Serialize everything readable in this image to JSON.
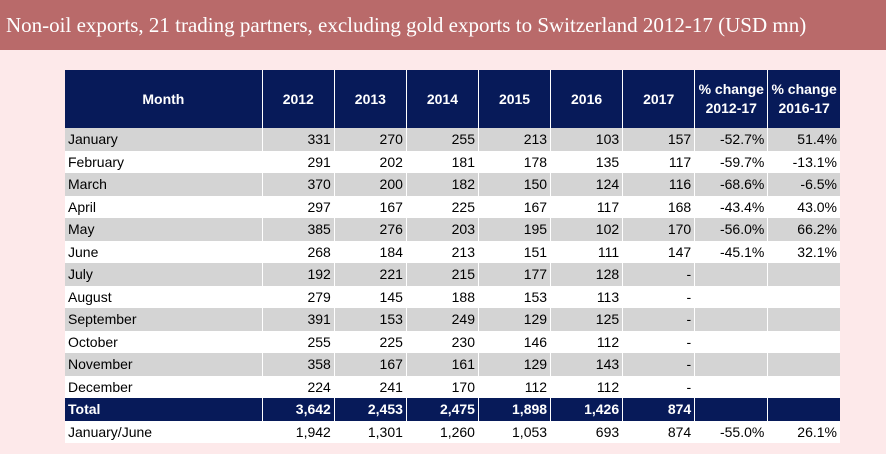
{
  "title": "Non-oil exports, 21 trading partners, excluding gold exports to Switzerland 2012-17 (USD mn)",
  "table": {
    "headers": [
      "Month",
      "2012",
      "2013",
      "2014",
      "2015",
      "2016",
      "2017",
      "% change 2012-17",
      "% change 2016-17"
    ],
    "rows": [
      {
        "month": "January",
        "v": [
          "331",
          "270",
          "255",
          "213",
          "103",
          "157"
        ],
        "p1": "-52.7%",
        "p2": "51.4%"
      },
      {
        "month": "February",
        "v": [
          "291",
          "202",
          "181",
          "178",
          "135",
          "117"
        ],
        "p1": "-59.7%",
        "p2": "-13.1%"
      },
      {
        "month": "March",
        "v": [
          "370",
          "200",
          "182",
          "150",
          "124",
          "116"
        ],
        "p1": "-68.6%",
        "p2": "-6.5%"
      },
      {
        "month": "April",
        "v": [
          "297",
          "167",
          "225",
          "167",
          "117",
          "168"
        ],
        "p1": "-43.4%",
        "p2": "43.0%"
      },
      {
        "month": "May",
        "v": [
          "385",
          "276",
          "203",
          "195",
          "102",
          "170"
        ],
        "p1": "-56.0%",
        "p2": "66.2%"
      },
      {
        "month": "June",
        "v": [
          "268",
          "184",
          "213",
          "151",
          "111",
          "147"
        ],
        "p1": "-45.1%",
        "p2": "32.1%"
      },
      {
        "month": "July",
        "v": [
          "192",
          "221",
          "215",
          "177",
          "128",
          "-"
        ],
        "p1": "",
        "p2": ""
      },
      {
        "month": "August",
        "v": [
          "279",
          "145",
          "188",
          "153",
          "113",
          "-"
        ],
        "p1": "",
        "p2": ""
      },
      {
        "month": "September",
        "v": [
          "391",
          "153",
          "249",
          "129",
          "125",
          "-"
        ],
        "p1": "",
        "p2": ""
      },
      {
        "month": "October",
        "v": [
          "255",
          "225",
          "230",
          "146",
          "112",
          "-"
        ],
        "p1": "",
        "p2": ""
      },
      {
        "month": "November",
        "v": [
          "358",
          "167",
          "161",
          "129",
          "143",
          "-"
        ],
        "p1": "",
        "p2": ""
      },
      {
        "month": "December",
        "v": [
          "224",
          "241",
          "170",
          "112",
          "112",
          "-"
        ],
        "p1": "",
        "p2": ""
      }
    ],
    "total": {
      "month": "Total",
      "v": [
        "3,642",
        "2,453",
        "2,475",
        "1,898",
        "1,426",
        "874"
      ],
      "p1": "",
      "p2": ""
    },
    "jan_jun": {
      "month": "January/June",
      "v": [
        "1,942",
        "1,301",
        "1,260",
        "1,053",
        "693",
        "874"
      ],
      "p1": "-55.0%",
      "p2": "26.1%"
    }
  }
}
